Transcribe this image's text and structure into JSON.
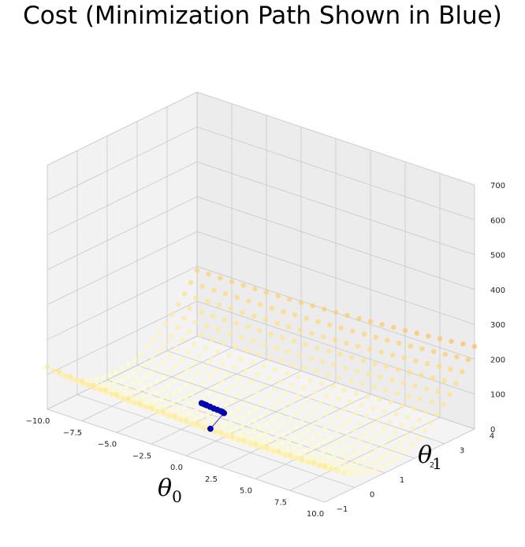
{
  "chart_data": {
    "type": "scatter",
    "title": "Cost (Minimization Path Shown in Blue)",
    "xlabel": "θ",
    "xlabel_sub": "0",
    "ylabel": "θ",
    "ylabel_sub": "1",
    "zlabel": "",
    "x_ticks": [
      "−10.0",
      "−7.5",
      "−5.0",
      "−2.5",
      "0.0",
      "2.5",
      "5.0",
      "7.5",
      "10.0"
    ],
    "y_ticks": [
      "−1",
      "0",
      "1",
      "2",
      "3",
      "4"
    ],
    "z_ticks": [
      "0",
      "100",
      "200",
      "300",
      "400",
      "500",
      "600",
      "700"
    ],
    "xlim": [
      -10,
      10
    ],
    "ylim": [
      -1,
      4
    ],
    "zlim": [
      0,
      700
    ],
    "grid": true,
    "colormap": "YlOrRd",
    "cost_surface": {
      "description_free": true,
      "theta0_range": [
        -10,
        10
      ],
      "theta1_range": [
        -1,
        4
      ],
      "z_min": 0,
      "z_max": 700
    },
    "series": [
      {
        "color": "#0000cc",
        "points": [
          {
            "x": -0.4,
            "y": 0.0,
            "z": 30
          },
          {
            "x": -1.8,
            "y": 1.1,
            "z": 10
          },
          {
            "x": -2.0,
            "y": 1.15,
            "z": 8
          },
          {
            "x": -2.2,
            "y": 1.18,
            "z": 7
          },
          {
            "x": -2.5,
            "y": 1.2,
            "z": 6
          },
          {
            "x": -2.8,
            "y": 1.22,
            "z": 5
          },
          {
            "x": -3.1,
            "y": 1.24,
            "z": 5
          },
          {
            "x": -3.4,
            "y": 1.26,
            "z": 4.5
          },
          {
            "x": -3.6,
            "y": 1.27,
            "z": 4.5
          },
          {
            "x": -3.8,
            "y": 1.28,
            "z": 4.4
          }
        ]
      }
    ]
  }
}
